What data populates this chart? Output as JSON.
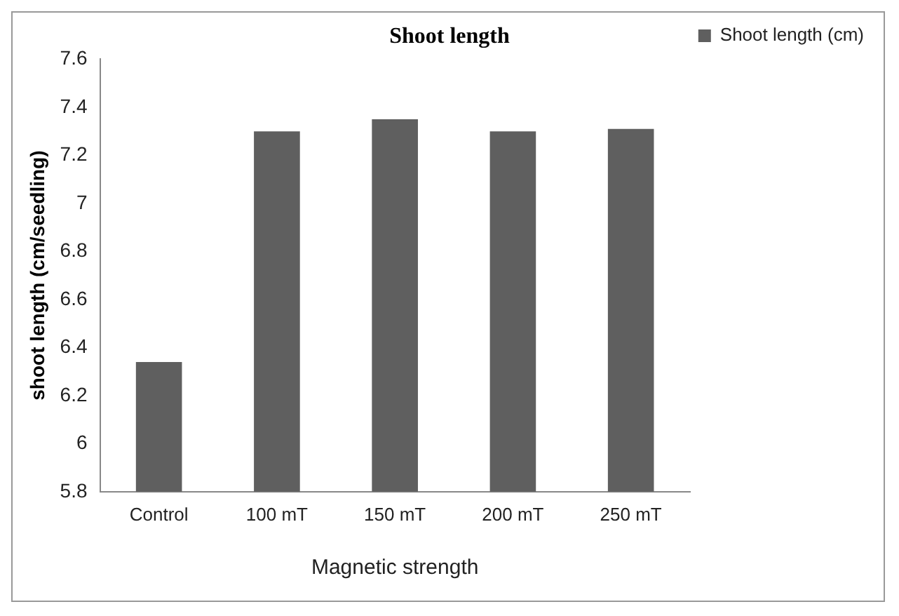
{
  "chart_data": {
    "type": "bar",
    "title": "Shoot length",
    "xlabel": "Magnetic strength",
    "ylabel": "shoot length (cm/seedling)",
    "categories": [
      "Control",
      "100 mT",
      "150 mT",
      "200 mT",
      "250 mT"
    ],
    "series": [
      {
        "name": "Shoot length (cm)",
        "color": "#5f5f5f",
        "values": [
          6.34,
          7.3,
          7.35,
          7.3,
          7.31
        ]
      }
    ],
    "ylim": [
      5.8,
      7.6
    ],
    "yticks": [
      5.8,
      6,
      6.2,
      6.4,
      6.6,
      6.8,
      7,
      7.2,
      7.4,
      7.6
    ],
    "grid": false,
    "legend": "right"
  }
}
